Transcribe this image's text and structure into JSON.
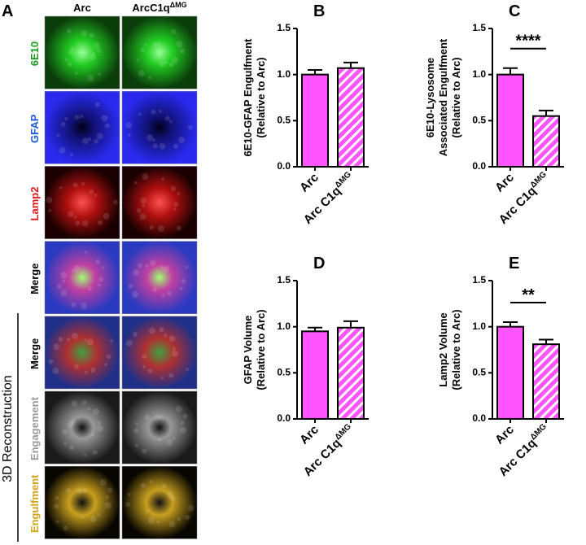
{
  "panel_a": {
    "letter": "A",
    "columns": [
      "Arc",
      "ArcC1q"
    ],
    "column_superscript": "ΔMG",
    "rows": [
      "6E10",
      "GFAP",
      "Lamp2",
      "Merge",
      "Merge",
      "Engagement",
      "Engulfment"
    ],
    "group_label": "3D Reconstruction"
  },
  "chart_data": [
    {
      "type": "bar",
      "panel": "B",
      "ylabel": [
        "6E10-GFAP Engulfment",
        "(Relative to Arc)"
      ],
      "categories": [
        "Arc",
        "Arc C1q"
      ],
      "superscripts": [
        {
          "category": 1,
          "text": "ΔMG"
        }
      ],
      "values": [
        1.0,
        1.07
      ],
      "errors": [
        0.05,
        0.06
      ],
      "color": "#ff55ff",
      "hatch": [
        false,
        true
      ],
      "ylim": [
        0,
        1.5
      ],
      "yticks": [
        {
          "value": 0,
          "label": "0.0"
        },
        0.5,
        {
          "value": 1,
          "label": "1.0"
        },
        1.5
      ]
    },
    {
      "type": "bar",
      "panel": "C",
      "ylabel": [
        "6E10-Lysosome",
        "Associated Engulfment",
        "(Relative to Arc)"
      ],
      "categories": [
        "Arc",
        "Arc C1q"
      ],
      "superscripts": [
        {
          "category": 1,
          "text": "ΔMG"
        }
      ],
      "values": [
        1.0,
        0.55
      ],
      "errors": [
        0.07,
        0.06
      ],
      "color": "#ff55ff",
      "hatch": [
        false,
        true
      ],
      "ylim": [
        0,
        1.5
      ],
      "yticks": [
        {
          "value": 0,
          "label": "0.0"
        },
        0.5,
        {
          "value": 1,
          "label": "1.0"
        },
        1.5
      ],
      "significance": {
        "text": "****",
        "between": [
          0,
          1
        ]
      }
    },
    {
      "type": "bar",
      "panel": "D",
      "ylabel": [
        "GFAP Volume",
        "(Relative to Arc)"
      ],
      "categories": [
        "Arc",
        "Arc C1q"
      ],
      "superscripts": [
        {
          "category": 1,
          "text": "ΔMG"
        }
      ],
      "values": [
        0.95,
        0.99
      ],
      "errors": [
        0.04,
        0.07
      ],
      "color": "#ff55ff",
      "hatch": [
        false,
        true
      ],
      "ylim": [
        0,
        1.5
      ],
      "yticks": [
        {
          "value": 0,
          "label": "0.0"
        },
        0.5,
        {
          "value": 1,
          "label": "1.0"
        },
        1.5
      ]
    },
    {
      "type": "bar",
      "panel": "E",
      "ylabel": [
        "Lamp2 Volume",
        "(Relative to  Arc)"
      ],
      "categories": [
        "Arc",
        "Arc C1q"
      ],
      "superscripts": [
        {
          "category": 1,
          "text": "ΔMG"
        }
      ],
      "values": [
        1.0,
        0.81
      ],
      "errors": [
        0.05,
        0.05
      ],
      "color": "#ff55ff",
      "hatch": [
        false,
        true
      ],
      "ylim": [
        0,
        1.5
      ],
      "yticks": [
        {
          "value": 0,
          "label": "0.0"
        },
        0.5,
        {
          "value": 1,
          "label": "1.0"
        },
        1.5
      ],
      "significance": {
        "text": "**",
        "between": [
          0,
          1
        ]
      }
    }
  ]
}
